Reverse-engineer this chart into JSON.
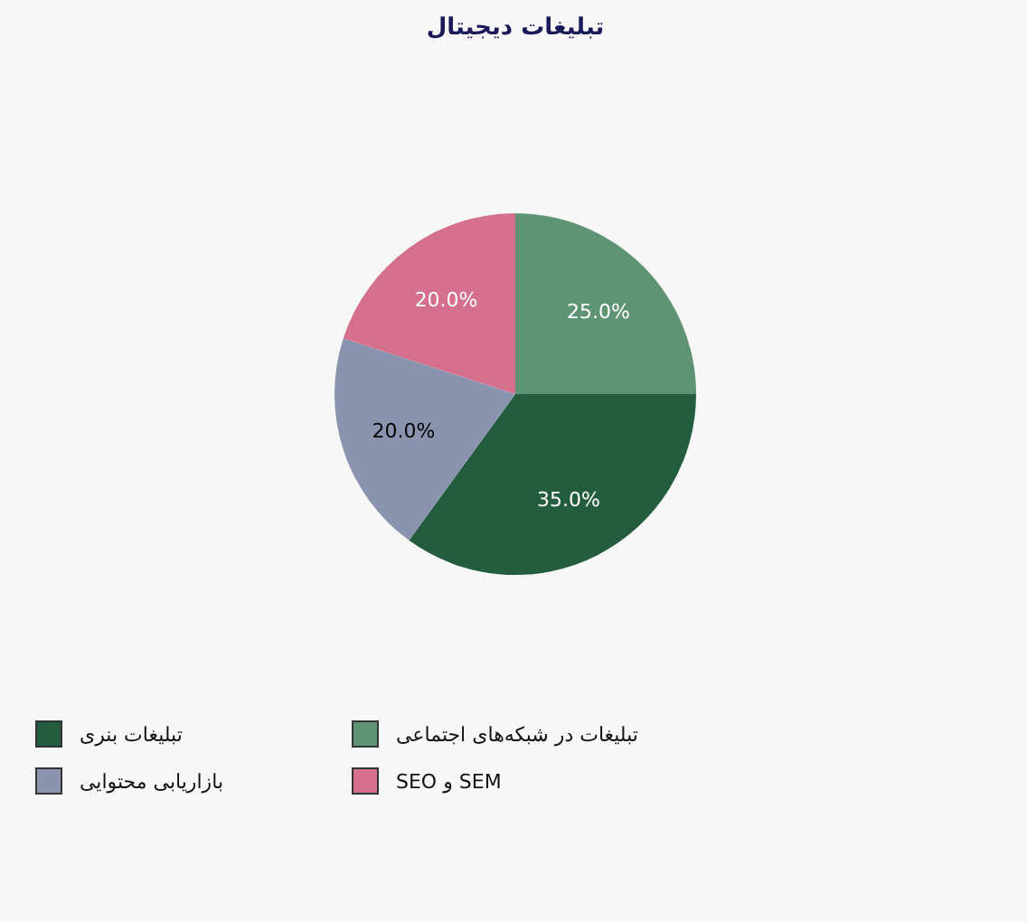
{
  "chart_data": {
    "type": "pie",
    "title": "تبلیغات دیجیتال",
    "categories": [
      "تبلیغات در شبکه‌های اجتماعی",
      "تبلیغات بنری",
      "بازاریابی محتوایی",
      "SEO و SEM"
    ],
    "values": [
      25,
      35,
      20,
      20
    ],
    "value_labels": [
      "25.0%",
      "35.0%",
      "20.0%",
      "20.0%"
    ],
    "colors": [
      "#5e9474",
      "#235c3e",
      "#8a94ae",
      "#d4708e"
    ],
    "legend": "bottom"
  }
}
